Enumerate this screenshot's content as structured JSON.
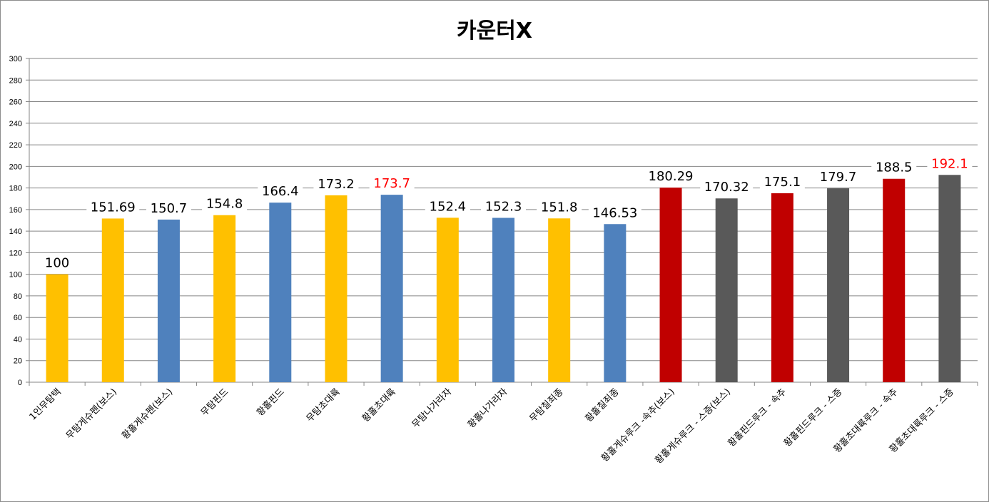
{
  "chart_data": {
    "type": "bar",
    "title": "카운터X",
    "xlabel": "",
    "ylabel": "",
    "ylim": [
      0,
      300
    ],
    "ytick_step": 20,
    "grid": true,
    "legend": "none",
    "categories": [
      "1인무탐택",
      "무탐게슈펜(보스)",
      "황홀게슈펜(보스)",
      "무탐핀드",
      "황홀핀드",
      "무탐초대륙",
      "황홀초대륙",
      "무탐나가라자",
      "황홀나가라자",
      "무탐칠죄종",
      "황홀칠죄종",
      "황홀게슈루크 -속추(보스)",
      "황홀게슈루크 - 스증(보스)",
      "황홀핀드루크 - 속추",
      "황홀핀드루크 - 스증",
      "황홀초대륙루크 - 속추",
      "황홀초대륙루크 - 스증"
    ],
    "values": [
      100,
      151.69,
      150.7,
      154.8,
      166.4,
      173.2,
      173.7,
      152.4,
      152.3,
      151.8,
      146.53,
      180.29,
      170.32,
      175.1,
      179.7,
      188.5,
      192.1
    ],
    "data_labels": [
      "100",
      "151.69",
      "150.7",
      "154.8",
      "166.4",
      "173.2",
      "173.7",
      "152.4",
      "152.3",
      "151.8",
      "146.53",
      "180.29",
      "170.32",
      "175.1",
      "179.7",
      "188.5",
      "192.1"
    ],
    "bar_colors": [
      "#FFC000",
      "#FFC000",
      "#4F81BD",
      "#FFC000",
      "#4F81BD",
      "#FFC000",
      "#4F81BD",
      "#FFC000",
      "#4F81BD",
      "#FFC000",
      "#4F81BD",
      "#C00000",
      "#595959",
      "#C00000",
      "#595959",
      "#C00000",
      "#595959"
    ],
    "label_colors": [
      "#000000",
      "#000000",
      "#000000",
      "#000000",
      "#000000",
      "#000000",
      "#FF0000",
      "#000000",
      "#000000",
      "#000000",
      "#000000",
      "#000000",
      "#000000",
      "#000000",
      "#000000",
      "#000000",
      "#FF0000"
    ]
  }
}
